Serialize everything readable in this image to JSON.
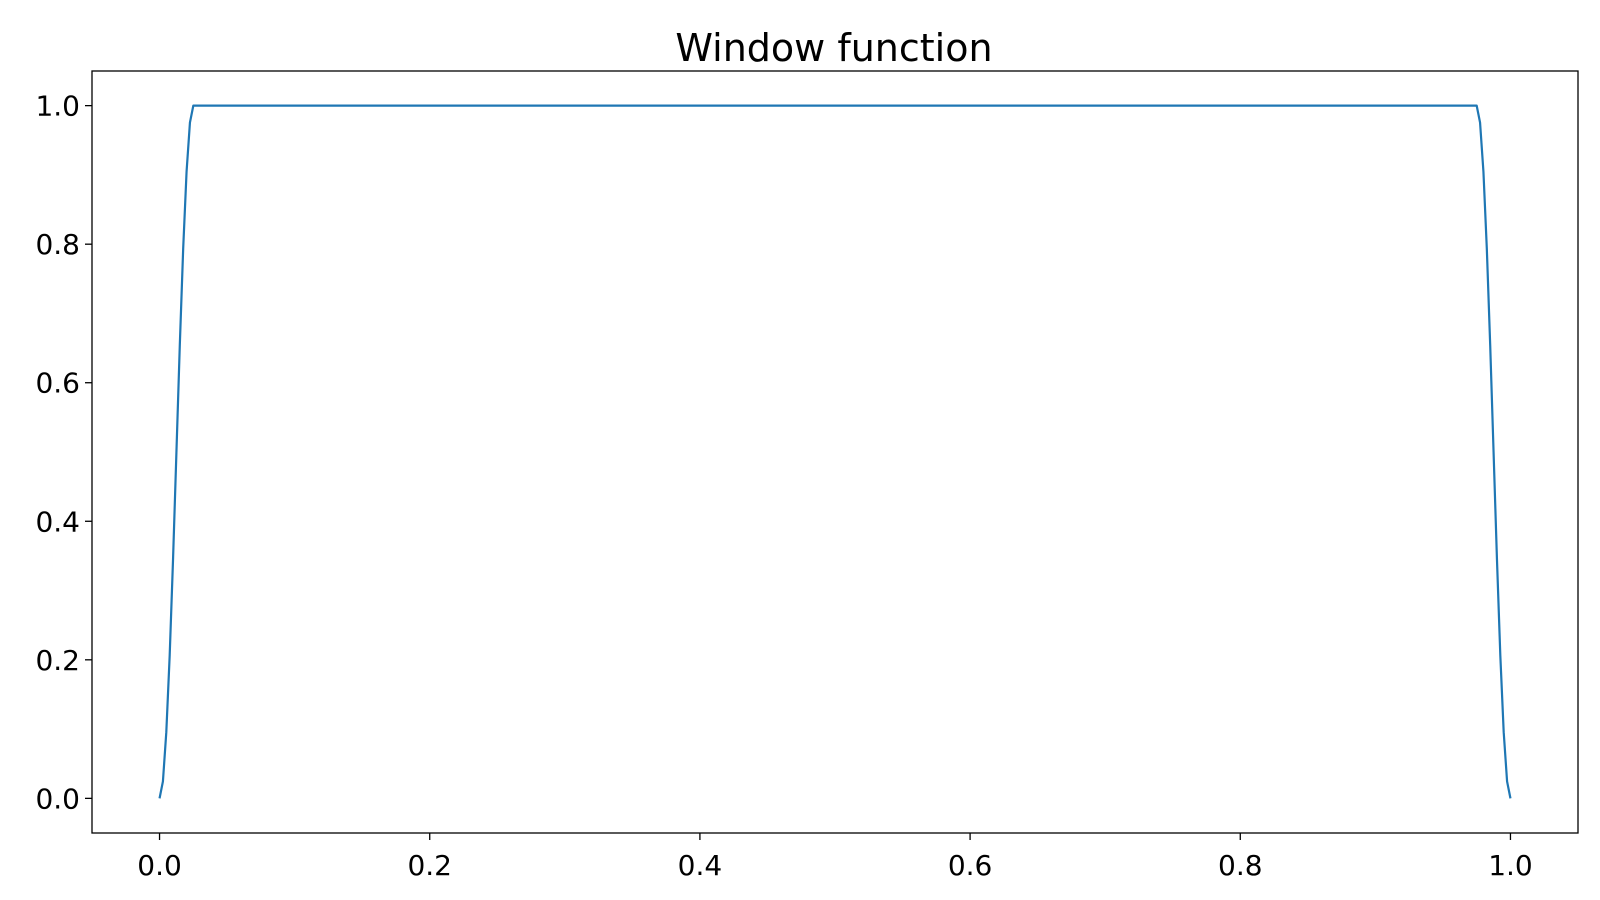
{
  "chart_data": {
    "type": "line",
    "title": "Window function",
    "xlabel": "",
    "ylabel": "",
    "xlim": [
      -0.05,
      1.05
    ],
    "ylim": [
      -0.05,
      1.05
    ],
    "xticks": [
      0.0,
      0.2,
      0.4,
      0.6,
      0.8,
      1.0
    ],
    "xtick_labels": [
      "0.0",
      "0.2",
      "0.4",
      "0.6",
      "0.8",
      "1.0"
    ],
    "yticks": [
      0.0,
      0.2,
      0.4,
      0.6,
      0.8,
      1.0
    ],
    "ytick_labels": [
      "0.0",
      "0.2",
      "0.4",
      "0.6",
      "0.8",
      "1.0"
    ],
    "grid": false,
    "legend": "none",
    "series": [
      {
        "color": "#1f77b4",
        "x": [
          0.0,
          0.0025,
          0.005,
          0.0075,
          0.01,
          0.0125,
          0.015,
          0.0175,
          0.02,
          0.0225,
          0.025,
          0.5,
          0.975,
          0.9775,
          0.98,
          0.9825,
          0.985,
          0.9875,
          0.99,
          0.9925,
          0.995,
          0.9975,
          1.0
        ],
        "y": [
          0.0,
          0.02447,
          0.09549,
          0.20611,
          0.34549,
          0.5,
          0.65451,
          0.79389,
          0.90451,
          0.97553,
          1.0,
          1.0,
          1.0,
          0.97553,
          0.90451,
          0.79389,
          0.65451,
          0.5,
          0.34549,
          0.20611,
          0.09549,
          0.02447,
          0.0
        ]
      }
    ]
  }
}
